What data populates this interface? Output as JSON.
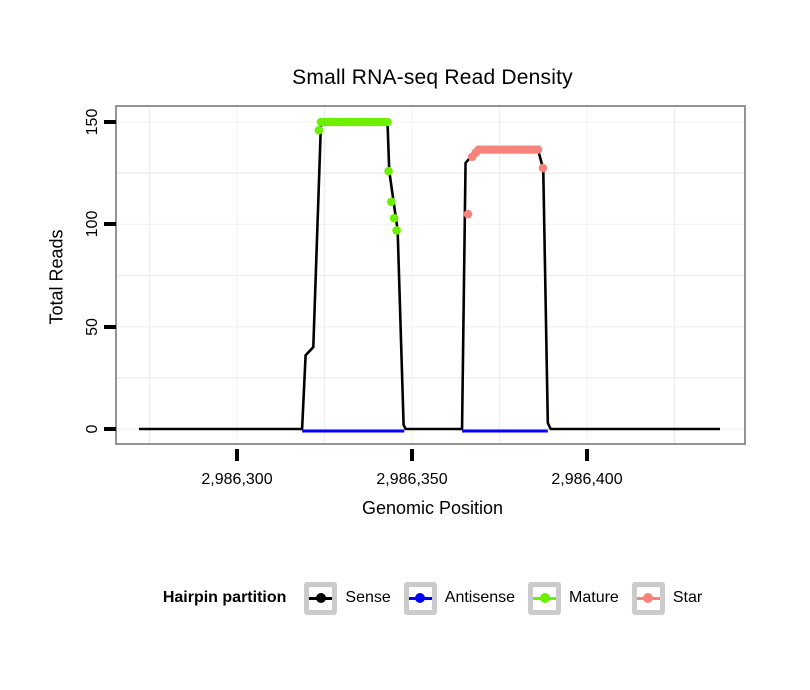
{
  "title": "Small RNA-seq Read Density",
  "chart_data": {
    "type": "line",
    "title": "Small RNA-seq Read Density",
    "xlabel": "Genomic Position",
    "ylabel": "Total Reads",
    "xlim": [
      2986266,
      2986446
    ],
    "ylim": [
      0,
      157
    ],
    "grid": "on",
    "legend_position": "bottom",
    "x_axis": {
      "ticks": [
        {
          "value": 2986300,
          "label": "2,986,300"
        },
        {
          "value": 2986350,
          "label": "2,986,350"
        },
        {
          "value": 2986400,
          "label": "2,986,400"
        }
      ],
      "minor": [
        2986275,
        2986325,
        2986375,
        2986425
      ]
    },
    "y_axis": {
      "ticks": [
        {
          "value": 0,
          "label": "0"
        },
        {
          "value": 50,
          "label": "50"
        },
        {
          "value": 100,
          "label": "100"
        },
        {
          "value": 150,
          "label": "150"
        }
      ],
      "minor": [
        25,
        75,
        125
      ]
    },
    "series": [
      {
        "name": "Sense",
        "color": "#000000",
        "type": "line",
        "points": [
          [
            2986272,
            0
          ],
          [
            2986318.6,
            0
          ],
          [
            2986319.6,
            36
          ],
          [
            2986321.8,
            40
          ],
          [
            2986324,
            150
          ],
          [
            2986343,
            150
          ],
          [
            2986343.5,
            126
          ],
          [
            2986345.9,
            97
          ],
          [
            2986347.6,
            2
          ],
          [
            2986348.2,
            0
          ],
          [
            2986364.3,
            0
          ],
          [
            2986365.3,
            130
          ],
          [
            2986368.6,
            136.5
          ],
          [
            2986386,
            136.5
          ],
          [
            2986387.5,
            127
          ],
          [
            2986388.8,
            3
          ],
          [
            2986389.6,
            0
          ],
          [
            2986438,
            0
          ]
        ]
      },
      {
        "name": "Antisense",
        "color": "#0000FF",
        "type": "line",
        "segments": [
          [
            [
              2986318.6,
              0
            ],
            [
              2986347.8,
              0
            ]
          ],
          [
            [
              2986364.3,
              0
            ],
            [
              2986388.8,
              0
            ]
          ]
        ]
      },
      {
        "name": "Mature",
        "color": "#6CF000",
        "type": "points",
        "points": [
          [
            2986323.4,
            146
          ],
          [
            2986324,
            150
          ],
          [
            2986325,
            150
          ],
          [
            2986326,
            150
          ],
          [
            2986327,
            150
          ],
          [
            2986328,
            150
          ],
          [
            2986329,
            150
          ],
          [
            2986330,
            150
          ],
          [
            2986331,
            150
          ],
          [
            2986332,
            150
          ],
          [
            2986333,
            150
          ],
          [
            2986334,
            150
          ],
          [
            2986335,
            150
          ],
          [
            2986336,
            150
          ],
          [
            2986337,
            150
          ],
          [
            2986338,
            150
          ],
          [
            2986339,
            150
          ],
          [
            2986340,
            150
          ],
          [
            2986341,
            150
          ],
          [
            2986342,
            150
          ],
          [
            2986343,
            150
          ],
          [
            2986343.3,
            126
          ],
          [
            2986344.1,
            111
          ],
          [
            2986344.9,
            103
          ],
          [
            2986345.6,
            97
          ]
        ]
      },
      {
        "name": "Star",
        "color": "#F8837B",
        "type": "points",
        "points": [
          [
            2986366,
            105
          ],
          [
            2986367.2,
            133
          ],
          [
            2986368.2,
            135
          ],
          [
            2986369,
            136.5
          ],
          [
            2986370,
            136.5
          ],
          [
            2986371,
            136.5
          ],
          [
            2986372,
            136.5
          ],
          [
            2986373,
            136.5
          ],
          [
            2986374,
            136.5
          ],
          [
            2986375,
            136.5
          ],
          [
            2986376,
            136.5
          ],
          [
            2986377,
            136.5
          ],
          [
            2986378,
            136.5
          ],
          [
            2986379,
            136.5
          ],
          [
            2986380,
            136.5
          ],
          [
            2986381,
            136.5
          ],
          [
            2986382,
            136.5
          ],
          [
            2986383,
            136.5
          ],
          [
            2986384,
            136.5
          ],
          [
            2986385,
            136.5
          ],
          [
            2986386,
            136.5
          ],
          [
            2986387.4,
            127.5
          ]
        ]
      }
    ]
  },
  "legend": {
    "title": "Hairpin partition",
    "items": [
      {
        "label": "Sense",
        "color": "#000000"
      },
      {
        "label": "Antisense",
        "color": "#0000FF"
      },
      {
        "label": "Mature",
        "color": "#6CF000"
      },
      {
        "label": "Star",
        "color": "#F8837B"
      }
    ]
  },
  "colors": {
    "panel_border": "#949494",
    "grid_minor": "#ededed",
    "grid_major": "#f4f4f4",
    "legend_key_border": "#cbcbcb"
  }
}
